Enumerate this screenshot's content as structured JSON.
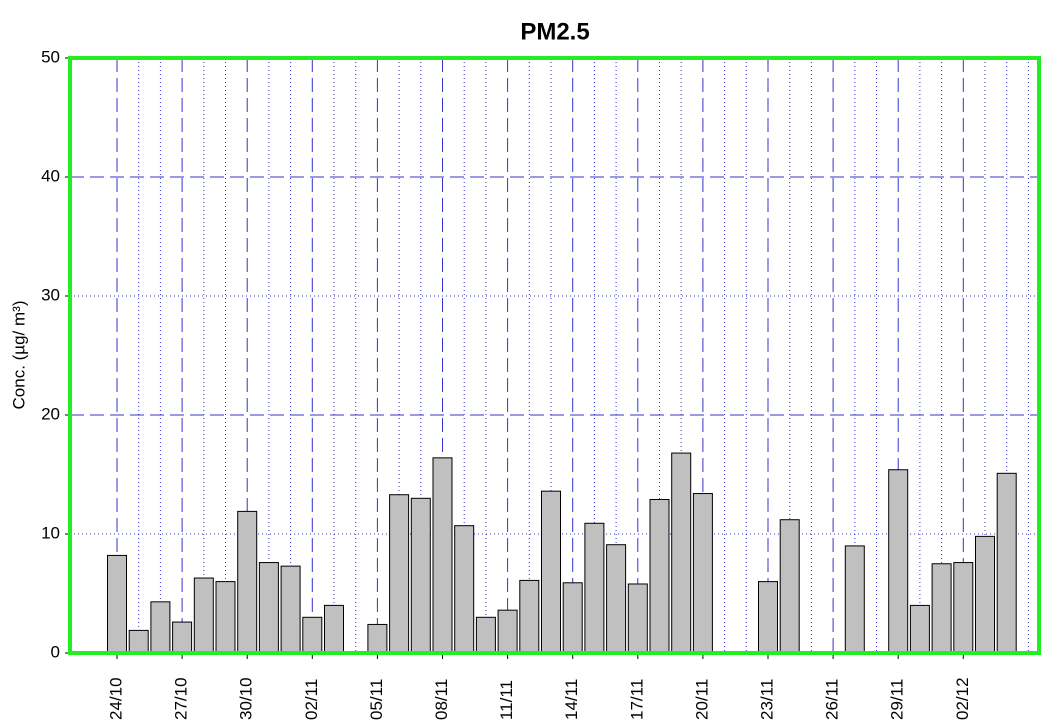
{
  "chart_data": {
    "type": "bar",
    "title": "PM2.5",
    "y_label": "Conc. (µg/ m³)",
    "categories": [
      "24/10",
      null,
      null,
      "27/10",
      null,
      null,
      "30/10",
      null,
      null,
      "02/11",
      null,
      null,
      "05/11",
      null,
      null,
      "08/11",
      null,
      null,
      "11/11",
      null,
      null,
      "14/11",
      null,
      null,
      "17/11",
      null,
      null,
      "20/11",
      null,
      null,
      "23/11",
      null,
      null,
      "26/11",
      null,
      null,
      "29/11",
      null,
      null,
      "02/12",
      null,
      null,
      null
    ],
    "values": [
      8.2,
      1.9,
      4.3,
      2.6,
      6.3,
      6.0,
      11.9,
      7.6,
      7.3,
      3.0,
      4.0,
      null,
      2.4,
      13.3,
      13.0,
      16.4,
      10.7,
      3.0,
      3.6,
      6.1,
      13.6,
      5.9,
      10.9,
      9.1,
      5.8,
      12.9,
      16.8,
      13.4,
      null,
      null,
      6.0,
      11.2,
      null,
      null,
      9.0,
      null,
      15.4,
      4.0,
      7.5,
      7.6,
      9.8,
      15.1,
      null
    ],
    "color": "#c0c0c0",
    "ylim": [
      0,
      50
    ],
    "yticks": [
      0,
      10,
      20,
      30,
      40,
      50
    ],
    "grid": true
  }
}
